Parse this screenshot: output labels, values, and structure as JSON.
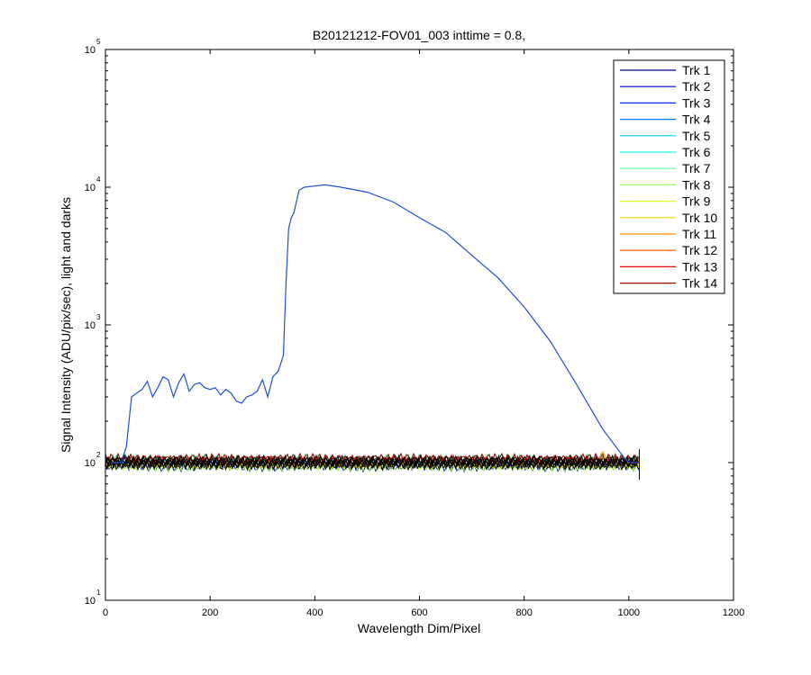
{
  "chart_data": {
    "type": "line",
    "title": "B20121212-FOV01_003 inttime = 0.8,",
    "xlabel": "Wavelength Dim/Pixel",
    "ylabel": "Signal Intensity (ADU/pix/sec), light and darks",
    "xlim": [
      0,
      1200
    ],
    "ylim": [
      10,
      100000
    ],
    "yscale": "log",
    "xticks": [
      0,
      200,
      400,
      600,
      800,
      1000,
      1200
    ],
    "yticks": [
      {
        "value": 10,
        "base": "10",
        "exp": "1"
      },
      {
        "value": 100,
        "base": "10",
        "exp": "2"
      },
      {
        "value": 1000,
        "base": "10",
        "exp": "3"
      },
      {
        "value": 10000,
        "base": "10",
        "exp": "4"
      },
      {
        "value": 100000,
        "base": "10",
        "exp": "5"
      }
    ],
    "grid": false,
    "legend_position": "top-right",
    "series": [
      {
        "name": "Trk 1",
        "color": "#00008f"
      },
      {
        "name": "Trk 2",
        "color": "#0000df"
      },
      {
        "name": "Trk 3",
        "color": "#0030ff"
      },
      {
        "name": "Trk 4",
        "color": "#007fff"
      },
      {
        "name": "Trk 5",
        "color": "#00cfff"
      },
      {
        "name": "Trk 6",
        "color": "#20ffdf"
      },
      {
        "name": "Trk 7",
        "color": "#60ffa0"
      },
      {
        "name": "Trk 8",
        "color": "#9fff60"
      },
      {
        "name": "Trk 9",
        "color": "#dfff20"
      },
      {
        "name": "Trk 10",
        "color": "#ffd000"
      },
      {
        "name": "Trk 11",
        "color": "#ff9000"
      },
      {
        "name": "Trk 12",
        "color": "#ff5000"
      },
      {
        "name": "Trk 13",
        "color": "#f00000"
      },
      {
        "name": "Trk 14",
        "color": "#a00000"
      }
    ],
    "light_track": {
      "color": "#1f4fd6",
      "x": [
        0,
        30,
        40,
        50,
        60,
        70,
        80,
        90,
        100,
        110,
        120,
        130,
        140,
        150,
        160,
        170,
        180,
        190,
        200,
        210,
        220,
        230,
        240,
        250,
        260,
        270,
        280,
        290,
        300,
        310,
        320,
        330,
        340,
        345,
        350,
        355,
        360,
        370,
        380,
        400,
        420,
        450,
        500,
        550,
        600,
        650,
        700,
        750,
        800,
        850,
        900,
        950,
        990,
        1000,
        1020
      ],
      "y": [
        100,
        100,
        130,
        300,
        320,
        340,
        390,
        300,
        350,
        420,
        400,
        300,
        380,
        440,
        330,
        370,
        380,
        350,
        340,
        350,
        310,
        340,
        320,
        280,
        270,
        300,
        310,
        330,
        400,
        300,
        420,
        460,
        600,
        2000,
        5000,
        6000,
        6500,
        9500,
        10000,
        10200,
        10400,
        10000,
        9200,
        7800,
        6000,
        4700,
        3200,
        2200,
        1350,
        760,
        370,
        175,
        110,
        100,
        100
      ]
    },
    "dark_level": 100,
    "marker": {
      "x": 950,
      "y": 113,
      "color": "#e8a000"
    }
  }
}
